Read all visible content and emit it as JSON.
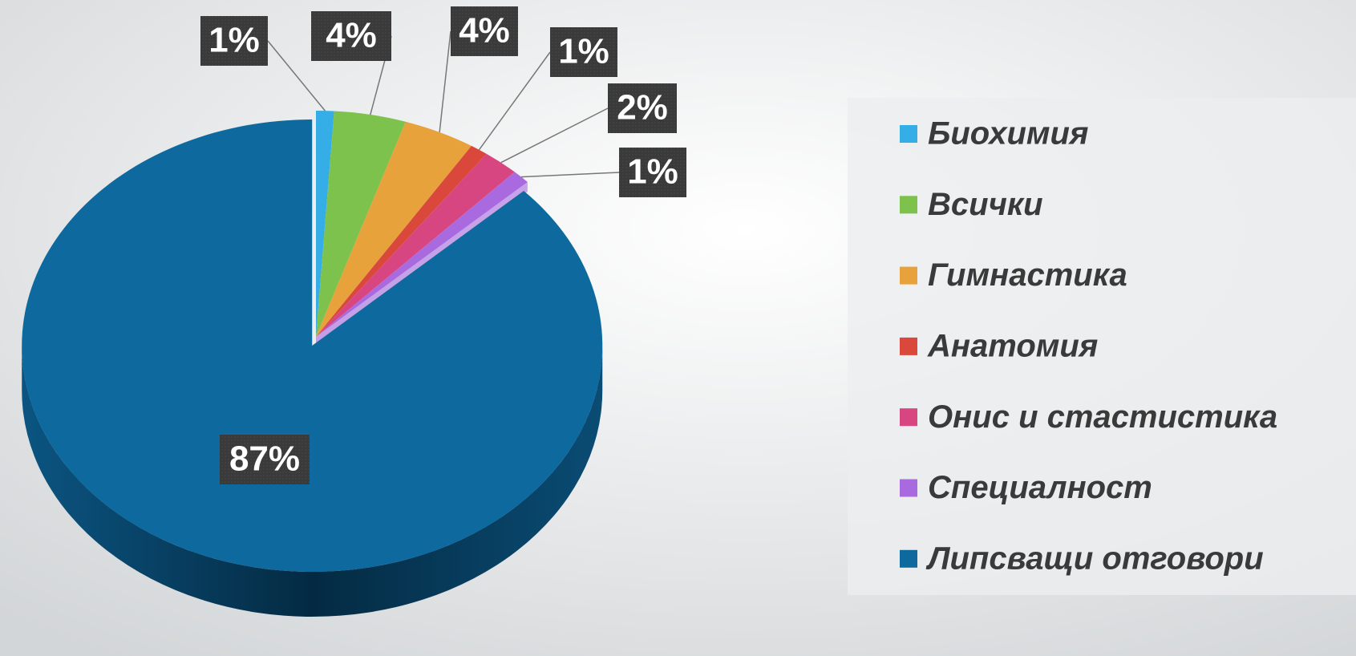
{
  "chart_data": {
    "type": "pie",
    "categories": [
      "Биохимия",
      "Всички",
      "Гимнастика",
      "Анатомия",
      "Онис и стастистика",
      "Специалност",
      "Липсващи отговори"
    ],
    "values": [
      1,
      4,
      4,
      1,
      2,
      1,
      87
    ],
    "value_labels": [
      "1%",
      "4%",
      "4%",
      "1%",
      "2%",
      "1%",
      "87%"
    ],
    "colors": [
      "#35ade6",
      "#7cc24c",
      "#e8a23c",
      "#d9483b",
      "#d84681",
      "#a96ae0",
      "#0e6a9e"
    ],
    "legend": "right"
  }
}
